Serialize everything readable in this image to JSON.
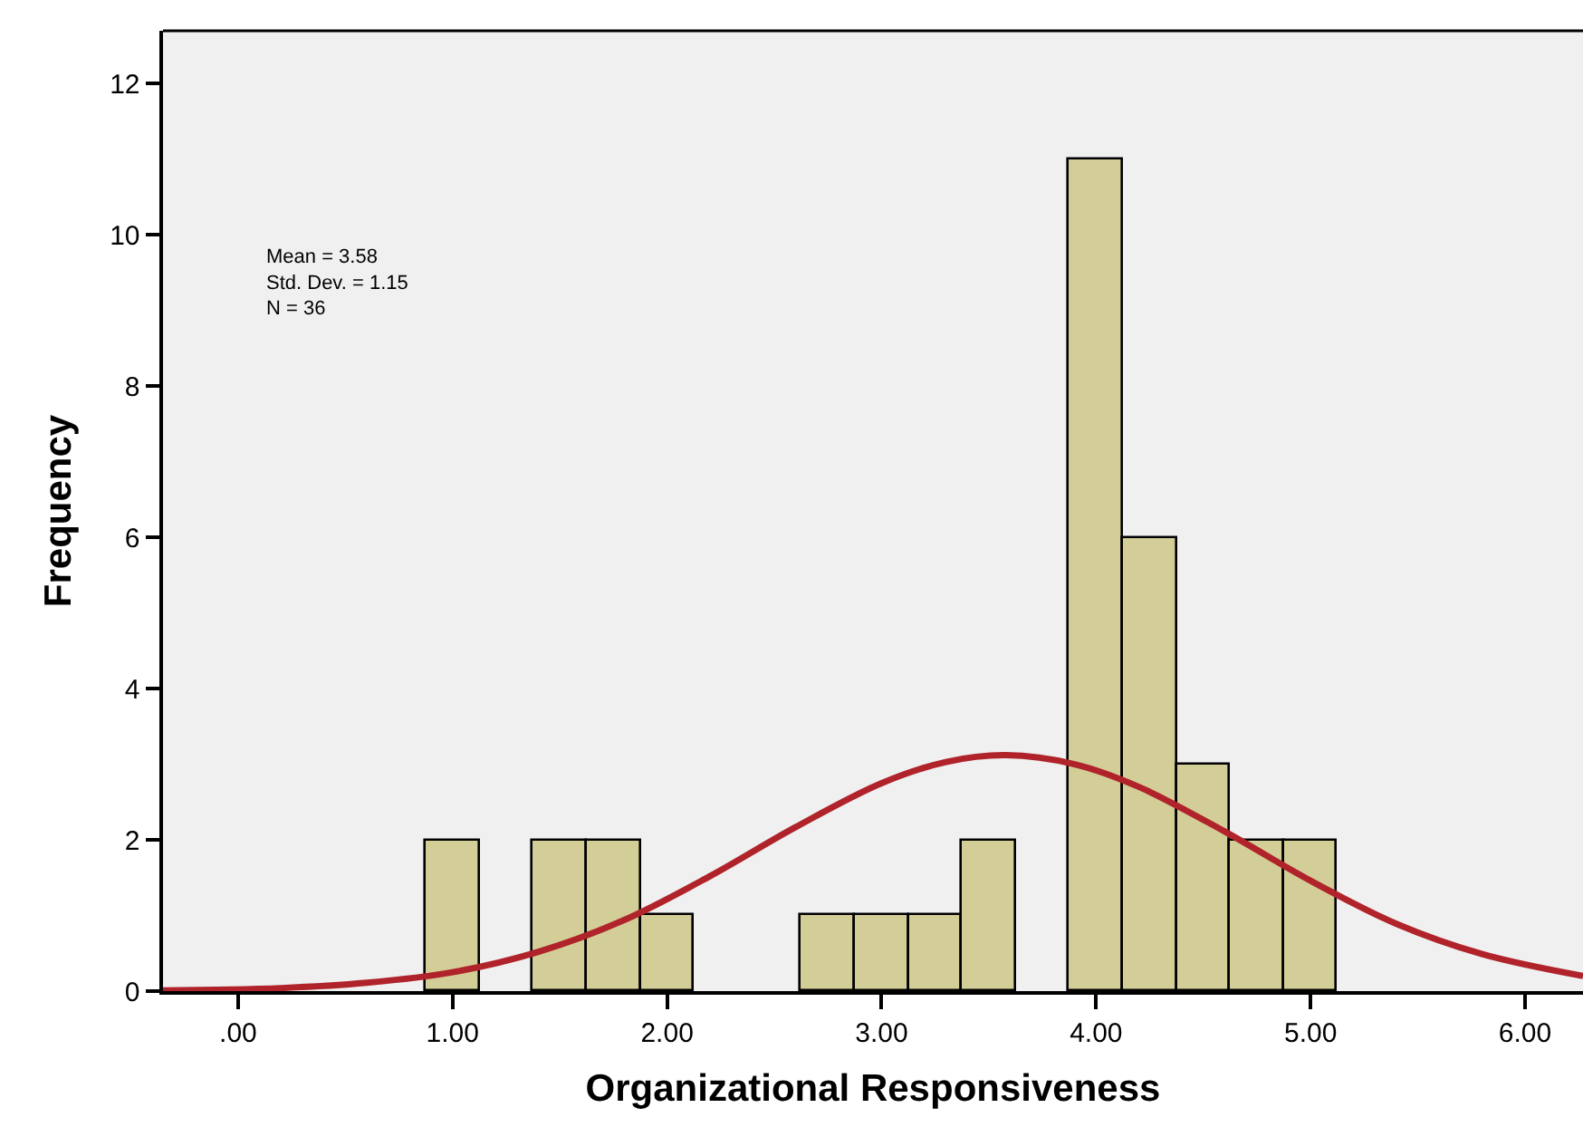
{
  "chart_data": {
    "type": "histogram",
    "xlabel": "Organizational Responsiveness",
    "ylabel": "Frequency",
    "bins": [
      0.875,
      1.125,
      1.375,
      1.625,
      1.875,
      2.125,
      2.375,
      2.625,
      2.875,
      3.125,
      3.375,
      3.625,
      3.875,
      4.125,
      4.375,
      4.625,
      4.875,
      5.125
    ],
    "values": [
      2,
      0,
      2,
      2,
      1,
      0,
      0,
      1,
      1,
      1,
      2,
      0,
      11,
      6,
      3,
      2,
      2
    ],
    "color": "#d3ce97",
    "series": [
      {
        "type": "line",
        "color": "#b0232a",
        "x": [
          -0.35,
          0.2,
          0.6,
          1.0,
          1.4,
          1.8,
          2.2,
          2.6,
          3.0,
          3.3,
          3.58,
          3.9,
          4.2,
          4.6,
          5.0,
          5.4,
          5.8,
          6.27
        ],
        "values": [
          0.01,
          0.04,
          0.11,
          0.25,
          0.52,
          0.94,
          1.52,
          2.17,
          2.75,
          3.03,
          3.12,
          3.0,
          2.7,
          2.11,
          1.46,
          0.89,
          0.49,
          0.2
        ]
      }
    ],
    "xlim": [
      -0.35,
      6.27
    ],
    "ylim": [
      0,
      12.7
    ],
    "xticks": [
      {
        "value": 0,
        "label": ".00"
      },
      {
        "value": 1,
        "label": "1.00"
      },
      {
        "value": 2,
        "label": "2.00"
      },
      {
        "value": 3,
        "label": "3.00"
      },
      {
        "value": 4,
        "label": "4.00"
      },
      {
        "value": 5,
        "label": "5.00"
      },
      {
        "value": 6,
        "label": "6.00"
      }
    ],
    "yticks": [
      0,
      2,
      4,
      6,
      8,
      10,
      12
    ],
    "annotations": [
      "Mean = 3.58\nStd. Dev. = 1.15\nN = 36"
    ],
    "grid": false
  }
}
